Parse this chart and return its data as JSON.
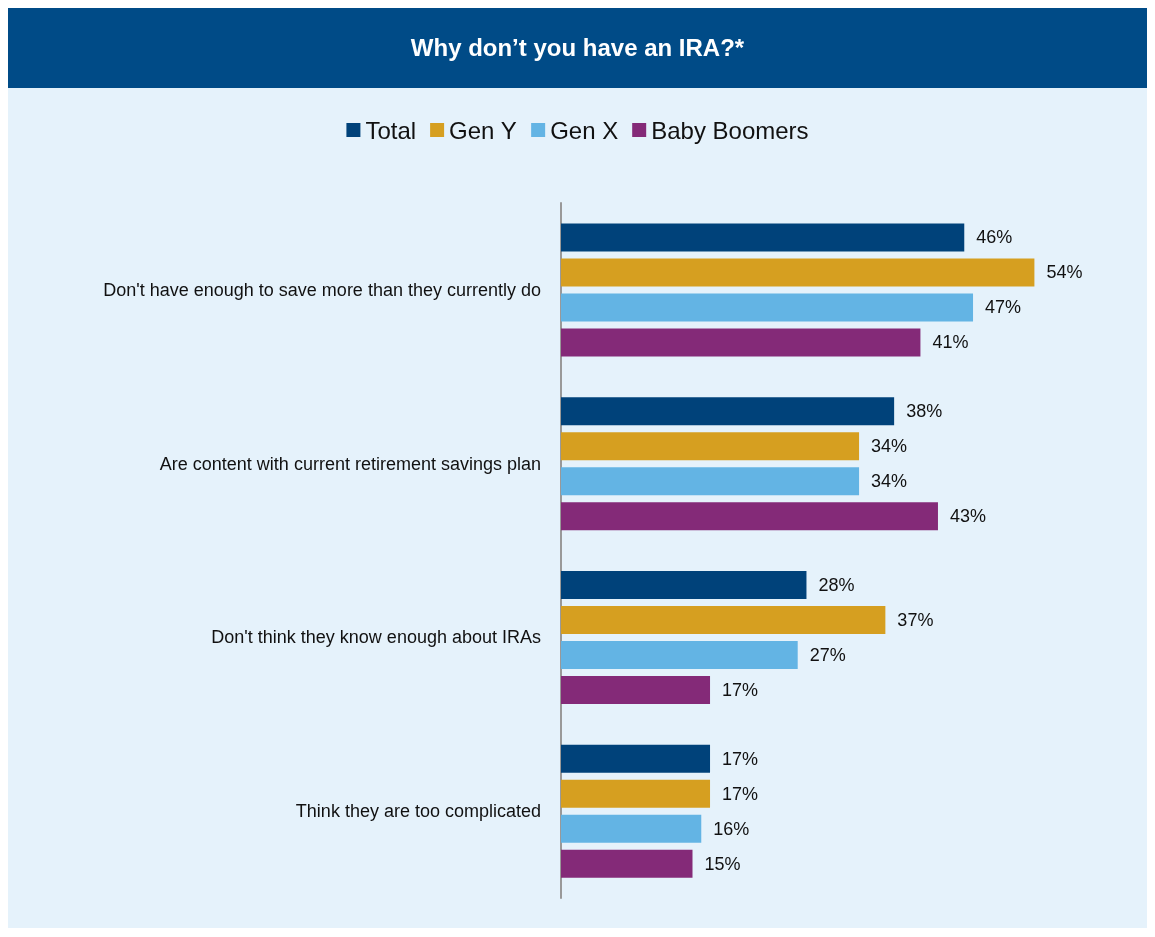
{
  "chart_data": {
    "type": "bar",
    "orientation": "horizontal",
    "title": "Why don’t you have an IRA?*",
    "categories": [
      "Don't have enough to save more than they currently do",
      "Are content with current retirement savings plan",
      "Don't think they know enough about IRAs",
      "Think they are too complicated"
    ],
    "series": [
      {
        "name": "Total",
        "color": "#00427a",
        "values": [
          46,
          38,
          28,
          17
        ],
        "value_labels": [
          "46%",
          "38%",
          "28%",
          "17%"
        ]
      },
      {
        "name": "Gen Y",
        "color": "#d69f20",
        "values": [
          54,
          34,
          37,
          17
        ],
        "value_labels": [
          "54%",
          "34%",
          "37%",
          "17%"
        ]
      },
      {
        "name": "Gen X",
        "color": "#63b4e4",
        "values": [
          47,
          34,
          27,
          16
        ],
        "value_labels": [
          "47%",
          "34%",
          "27%",
          "16%"
        ]
      },
      {
        "name": "Baby Boomers",
        "color": "#842a78",
        "values": [
          41,
          43,
          17,
          15
        ],
        "value_labels": [
          "41%",
          "43%",
          "17%",
          "15%"
        ]
      }
    ],
    "legend": "top",
    "tick_labels": "y"
  }
}
